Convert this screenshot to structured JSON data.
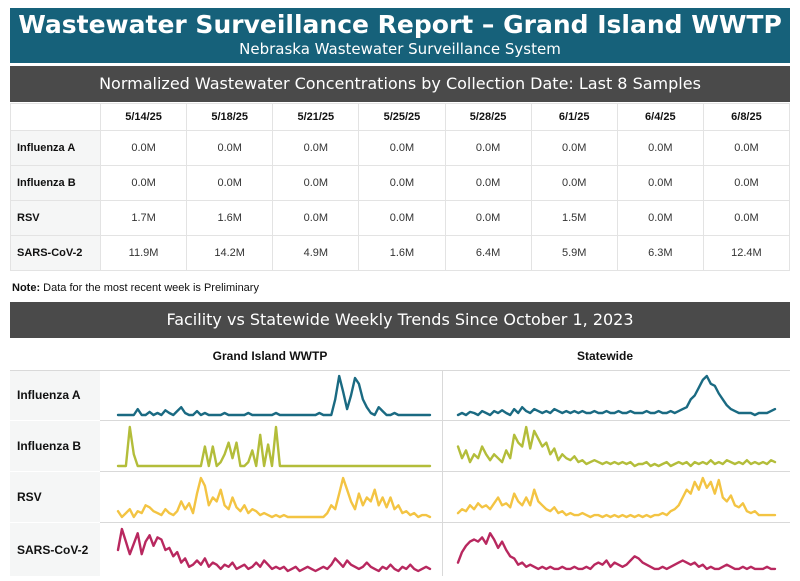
{
  "header": {
    "title": "Wastewater Surveillance Report – Grand Island WWTP",
    "subtitle": "Nebraska Wastewater Surveillance System"
  },
  "concentrations": {
    "band_title": "Normalized Wastewater Concentrations by Collection Date: Last 8 Samples",
    "dates": [
      "5/14/25",
      "5/18/25",
      "5/21/25",
      "5/25/25",
      "5/28/25",
      "6/1/25",
      "6/4/25",
      "6/8/25"
    ],
    "rows": [
      {
        "label": "Influenza A",
        "values": [
          "0.0M",
          "0.0M",
          "0.0M",
          "0.0M",
          "0.0M",
          "0.0M",
          "0.0M",
          "0.0M"
        ]
      },
      {
        "label": "Influenza B",
        "values": [
          "0.0M",
          "0.0M",
          "0.0M",
          "0.0M",
          "0.0M",
          "0.0M",
          "0.0M",
          "0.0M"
        ]
      },
      {
        "label": "RSV",
        "values": [
          "1.7M",
          "1.6M",
          "0.0M",
          "0.0M",
          "0.0M",
          "1.5M",
          "0.0M",
          "0.0M"
        ]
      },
      {
        "label": "SARS-CoV-2",
        "values": [
          "11.9M",
          "14.2M",
          "4.9M",
          "1.6M",
          "6.4M",
          "5.9M",
          "6.3M",
          "12.4M"
        ]
      }
    ]
  },
  "note": {
    "label": "Note:",
    "text": " Data for the most recent week is Preliminary"
  },
  "trends": {
    "band_title": "Facility vs Statewide Weekly Trends Since October 1, 2023",
    "columns": [
      "Grand Island WWTP",
      "Statewide"
    ],
    "colors": {
      "Influenza A": "#1a6a82",
      "Influenza B": "#b3bd3a",
      "RSV": "#f3c443",
      "SARS-CoV-2": "#b8285f"
    }
  },
  "chart_data": {
    "type": "line",
    "title": "Facility vs Statewide Weekly Trends Since October 1, 2023",
    "panels": [
      {
        "column": "Grand Island WWTP",
        "series": [
          {
            "name": "Influenza A",
            "values": [
              0,
              0,
              0,
              0,
              0,
              0.15,
              0,
              0,
              0.08,
              0,
              0.05,
              0,
              0.12,
              0.05,
              0,
              0.1,
              0.2,
              0.05,
              0,
              0,
              0.1,
              0,
              0.05,
              0,
              0,
              0,
              0,
              0.05,
              0,
              0,
              0,
              0,
              0,
              0.05,
              0,
              0,
              0,
              0,
              0,
              0,
              0.05,
              0,
              0,
              0,
              0,
              0,
              0,
              0,
              0,
              0,
              0,
              0.05,
              0,
              0,
              0,
              0.4,
              1.0,
              0.6,
              0.15,
              0.5,
              0.95,
              0.8,
              0.4,
              0.2,
              0.05,
              0,
              0.2,
              0.1,
              0,
              0,
              0.05,
              0,
              0,
              0,
              0,
              0,
              0,
              0,
              0,
              0
            ]
          },
          {
            "name": "Influenza B",
            "values": [
              0,
              0,
              0,
              1.0,
              0.3,
              0,
              0,
              0,
              0,
              0,
              0,
              0,
              0,
              0,
              0,
              0,
              0,
              0,
              0,
              0,
              0,
              0,
              0.5,
              0,
              0.5,
              0,
              0.1,
              0.3,
              0.6,
              0.2,
              0.6,
              0,
              0,
              0.1,
              0.4,
              0,
              0.8,
              0,
              0.55,
              0,
              1.0,
              0,
              0,
              0,
              0,
              0,
              0,
              0,
              0,
              0,
              0,
              0,
              0,
              0,
              0,
              0,
              0,
              0,
              0,
              0,
              0,
              0,
              0,
              0,
              0,
              0,
              0,
              0,
              0,
              0,
              0,
              0,
              0,
              0,
              0,
              0,
              0,
              0,
              0,
              0
            ]
          },
          {
            "name": "RSV",
            "values": [
              0.15,
              0,
              0.1,
              0.2,
              0,
              0.15,
              0.1,
              0.3,
              0.25,
              0.15,
              0.1,
              0.05,
              0.2,
              0.1,
              0.05,
              0.15,
              0.4,
              0.2,
              0.35,
              0.1,
              0.6,
              1.0,
              0.8,
              0.3,
              0.5,
              0.4,
              0.7,
              0.3,
              0.2,
              0.5,
              0.25,
              0.15,
              0.3,
              0.1,
              0.2,
              0.15,
              0.05,
              0.1,
              0.05,
              0,
              0.05,
              0,
              0.05,
              0,
              0,
              0,
              0,
              0,
              0,
              0,
              0,
              0,
              0,
              0.1,
              0.3,
              0.2,
              0.6,
              1.0,
              0.7,
              0.4,
              0.2,
              0.6,
              0.3,
              0.5,
              0.4,
              0.7,
              0.3,
              0.5,
              0.25,
              0.5,
              0.2,
              0.3,
              0.1,
              0.15,
              0.05,
              0.1,
              0,
              0.05,
              0.05,
              0
            ]
          },
          {
            "name": "SARS-CoV-2",
            "values": [
              0.5,
              1.0,
              0.7,
              0.4,
              0.65,
              0.9,
              0.4,
              0.7,
              0.85,
              0.6,
              0.8,
              0.75,
              0.5,
              0.55,
              0.35,
              0.45,
              0.2,
              0.3,
              0.1,
              0.15,
              0.25,
              0.15,
              0.3,
              0.1,
              0.2,
              0.15,
              0.05,
              0.15,
              0.1,
              0.2,
              0.05,
              0.1,
              0.15,
              0.05,
              0.1,
              0.2,
              0.1,
              0.25,
              0.15,
              0.05,
              0.1,
              0.05,
              0.1,
              0,
              0.05,
              0.1,
              0,
              0.05,
              0.1,
              0.05,
              0,
              0.05,
              0.1,
              0.05,
              0.15,
              0.3,
              0.2,
              0.1,
              0.25,
              0.15,
              0.1,
              0.05,
              0.1,
              0.2,
              0.1,
              0.05,
              0,
              0.1,
              0.05,
              0.15,
              0.05,
              0,
              0.1,
              0.05,
              0.15,
              0.05,
              0,
              0.05,
              0.1,
              0.05
            ]
          }
        ]
      },
      {
        "column": "Statewide",
        "series": [
          {
            "name": "Influenza A",
            "values": [
              0,
              0.05,
              0,
              0.08,
              0.05,
              0,
              0.1,
              0.05,
              0,
              0.1,
              0.05,
              0.12,
              0.05,
              0,
              0.15,
              0.05,
              0.2,
              0.1,
              0.05,
              0.15,
              0.1,
              0.05,
              0.1,
              0.05,
              0.15,
              0.1,
              0.05,
              0.1,
              0.05,
              0.1,
              0.05,
              0.1,
              0.05,
              0.05,
              0.1,
              0.05,
              0.05,
              0.1,
              0.05,
              0.05,
              0.1,
              0.05,
              0.05,
              0.1,
              0.05,
              0.05,
              0.05,
              0.1,
              0.05,
              0.05,
              0.1,
              0.05,
              0.05,
              0.1,
              0.05,
              0.1,
              0.15,
              0.2,
              0.4,
              0.5,
              0.7,
              0.9,
              1.0,
              0.8,
              0.75,
              0.55,
              0.4,
              0.25,
              0.15,
              0.1,
              0.05,
              0.05,
              0.05,
              0.05,
              0,
              0.05,
              0.05,
              0.05,
              0.1,
              0.15
            ]
          },
          {
            "name": "Influenza B",
            "values": [
              0.5,
              0.2,
              0.4,
              0.1,
              0.3,
              0.2,
              0.5,
              0.3,
              0.15,
              0.3,
              0.2,
              0.1,
              0.4,
              0.2,
              0.8,
              0.6,
              0.5,
              1.0,
              0.45,
              0.9,
              0.7,
              0.5,
              0.6,
              0.3,
              0.45,
              0.15,
              0.3,
              0.2,
              0.15,
              0.25,
              0.1,
              0.15,
              0.05,
              0.1,
              0.15,
              0.1,
              0.05,
              0.1,
              0.05,
              0.1,
              0.05,
              0.1,
              0.05,
              0.1,
              0,
              0.05,
              0.05,
              0.1,
              0,
              0.05,
              0,
              0.05,
              0.1,
              0,
              0.05,
              0.1,
              0.05,
              0.1,
              0,
              0.1,
              0.05,
              0.1,
              0.05,
              0.15,
              0.05,
              0.1,
              0.05,
              0.15,
              0.1,
              0.05,
              0.1,
              0.05,
              0.15,
              0.05,
              0.1,
              0.05,
              0.1,
              0.05,
              0.15,
              0.1
            ]
          },
          {
            "name": "RSV",
            "values": [
              0.1,
              0.2,
              0.15,
              0.3,
              0.2,
              0.35,
              0.25,
              0.3,
              0.2,
              0.35,
              0.5,
              0.3,
              0.35,
              0.25,
              0.6,
              0.4,
              0.3,
              0.5,
              0.3,
              0.7,
              0.4,
              0.3,
              0.2,
              0.15,
              0.25,
              0.1,
              0.15,
              0.05,
              0.1,
              0.05,
              0.05,
              0.1,
              0.05,
              0,
              0.05,
              0.05,
              0,
              0.05,
              0,
              0.05,
              0,
              0.05,
              0,
              0.05,
              0,
              0.05,
              0,
              0.05,
              0,
              0.05,
              0.05,
              0.1,
              0.05,
              0.15,
              0.2,
              0.3,
              0.5,
              0.7,
              0.6,
              0.9,
              0.7,
              1.0,
              0.75,
              0.9,
              0.6,
              0.95,
              0.5,
              0.4,
              0.55,
              0.3,
              0.25,
              0.35,
              0.15,
              0.1,
              0.15,
              0.05,
              0.05,
              0.05,
              0.05,
              0.05
            ]
          },
          {
            "name": "SARS-CoV-2",
            "values": [
              0.2,
              0.45,
              0.6,
              0.7,
              0.75,
              0.7,
              0.8,
              0.65,
              0.9,
              0.75,
              0.55,
              0.7,
              0.5,
              0.35,
              0.3,
              0.15,
              0.2,
              0.1,
              0.15,
              0.1,
              0.05,
              0.1,
              0.05,
              0.1,
              0.05,
              0.05,
              0.1,
              0.05,
              0.05,
              0.1,
              0.05,
              0.05,
              0.1,
              0.05,
              0.15,
              0.2,
              0.15,
              0.25,
              0.1,
              0.2,
              0.15,
              0.1,
              0.15,
              0.25,
              0.35,
              0.3,
              0.2,
              0.15,
              0.1,
              0.05,
              0.05,
              0.1,
              0.05,
              0.1,
              0.15,
              0.2,
              0.25,
              0.2,
              0.15,
              0.2,
              0.1,
              0.15,
              0.05,
              0.1,
              0.05,
              0.05,
              0.1,
              0.15,
              0.1,
              0.05,
              0.05,
              0.1,
              0.05,
              0.1,
              0.05,
              0.05,
              0.05,
              0.1,
              0.05,
              0.05
            ]
          }
        ]
      }
    ]
  }
}
